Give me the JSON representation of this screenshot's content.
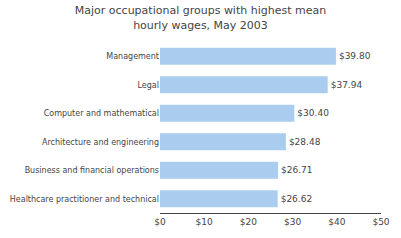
{
  "chart_data": {
    "type": "bar",
    "orientation": "horizontal",
    "title": "Major occupational groups with highest mean\nhourly wages, May 2003",
    "categories": [
      "Healthcare practitioner and technical",
      "Business and financial operations",
      "Architecture and engineering",
      "Computer and mathematical",
      "Legal",
      "Management"
    ],
    "values": [
      26.62,
      26.71,
      28.48,
      30.4,
      37.94,
      39.8
    ],
    "value_labels": [
      "$26.62",
      "$26.71",
      "$28.48",
      "$30.40",
      "$37.94",
      "$39.80"
    ],
    "data_labels": true,
    "color": "#aaccee",
    "xlim": [
      0,
      50
    ],
    "xticks": [
      {
        "value": 0,
        "label": "$0"
      },
      {
        "value": 10,
        "label": "$10"
      },
      {
        "value": 20,
        "label": "$20"
      },
      {
        "value": 30,
        "label": "$30"
      },
      {
        "value": 40,
        "label": "$40"
      },
      {
        "value": 50,
        "label": "$50"
      }
    ],
    "grid": false
  }
}
